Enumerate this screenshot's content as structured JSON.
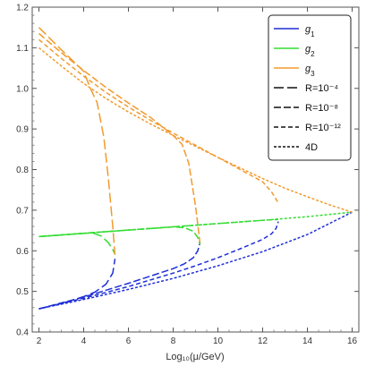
{
  "chart_data": {
    "type": "line",
    "xlabel": "Log₁₀(μ/GeV)",
    "ylabel": "",
    "xlim": [
      1.7,
      16.3
    ],
    "ylim": [
      0.4,
      1.2
    ],
    "xticks": [
      "2",
      "4",
      "6",
      "8",
      "10",
      "12",
      "14",
      "16"
    ],
    "yticks": [
      "0.4",
      "0.5",
      "0.6",
      "0.7",
      "0.8",
      "0.9",
      "1.0",
      "1.1",
      "1.2"
    ],
    "grid": false,
    "legend_position": "top-right",
    "colors": {
      "g1": "#1f2fd6",
      "g2": "#33dd33",
      "g3": "#f29a2e"
    },
    "legend": [
      {
        "label": "g1",
        "base": "g",
        "sub": "1",
        "kind": "color",
        "color": "#1f2fd6"
      },
      {
        "label": "g2",
        "base": "g",
        "sub": "2",
        "kind": "color",
        "color": "#33dd33"
      },
      {
        "label": "g3",
        "base": "g",
        "sub": "3",
        "kind": "color",
        "color": "#f29a2e"
      },
      {
        "label": "R=10⁻⁴",
        "kind": "style",
        "dash": "long"
      },
      {
        "label": "R=10⁻⁸",
        "kind": "style",
        "dash": "medium"
      },
      {
        "label": "R=10⁻¹²",
        "kind": "style",
        "dash": "short"
      },
      {
        "label": "4D",
        "kind": "style",
        "dash": "tiny"
      }
    ],
    "series": [
      {
        "name": "g1 4D",
        "coupling": "g1",
        "dash": "tiny",
        "x": [
          2,
          4,
          6,
          8,
          10,
          12,
          14,
          16
        ],
        "y": [
          0.457,
          0.48,
          0.505,
          0.532,
          0.563,
          0.598,
          0.64,
          0.695
        ]
      },
      {
        "name": "g2 4D",
        "coupling": "g2",
        "dash": "tiny",
        "x": [
          2,
          4,
          6,
          8,
          10,
          12,
          14,
          16
        ],
        "y": [
          0.635,
          0.643,
          0.651,
          0.659,
          0.667,
          0.675,
          0.684,
          0.695
        ]
      },
      {
        "name": "g3 4D",
        "coupling": "g3",
        "dash": "tiny",
        "x": [
          2,
          3,
          4,
          5,
          6,
          7,
          8,
          9,
          10,
          11,
          12,
          13,
          14,
          15,
          16
        ],
        "y": [
          1.1,
          1.055,
          1.012,
          0.975,
          0.942,
          0.912,
          0.884,
          0.857,
          0.83,
          0.804,
          0.778,
          0.754,
          0.733,
          0.713,
          0.695
        ]
      },
      {
        "name": "g1 R=10⁻¹²",
        "coupling": "g1",
        "dash": "short",
        "x": [
          2,
          4,
          6,
          8,
          9,
          10,
          11,
          12,
          12.4,
          12.6,
          12.7
        ],
        "y": [
          0.457,
          0.483,
          0.512,
          0.545,
          0.563,
          0.583,
          0.605,
          0.628,
          0.642,
          0.655,
          0.672
        ]
      },
      {
        "name": "g2 R=10⁻¹²",
        "coupling": "g2",
        "dash": "short",
        "x": [
          2,
          4,
          6,
          8,
          10,
          12,
          12.7
        ],
        "y": [
          0.635,
          0.643,
          0.651,
          0.659,
          0.667,
          0.675,
          0.677
        ]
      },
      {
        "name": "g3 R=10⁻¹²",
        "coupling": "g3",
        "dash": "short",
        "x": [
          2,
          3,
          4,
          5,
          6,
          7,
          8,
          9,
          10,
          11,
          12,
          12.4,
          12.7
        ],
        "y": [
          1.12,
          1.074,
          1.03,
          0.99,
          0.954,
          0.921,
          0.89,
          0.86,
          0.83,
          0.8,
          0.77,
          0.745,
          0.718
        ]
      },
      {
        "name": "g1 R=10⁻⁸",
        "coupling": "g1",
        "dash": "medium",
        "x": [
          2,
          4,
          6,
          7,
          8,
          8.5,
          8.9,
          9.1,
          9.2
        ],
        "y": [
          0.457,
          0.486,
          0.52,
          0.538,
          0.556,
          0.568,
          0.583,
          0.6,
          0.62
        ]
      },
      {
        "name": "g2 R=10⁻⁸",
        "coupling": "g2",
        "dash": "medium",
        "x": [
          2,
          4,
          6,
          8,
          8.5,
          8.9,
          9.1,
          9.2
        ],
        "y": [
          0.635,
          0.643,
          0.651,
          0.659,
          0.657,
          0.648,
          0.633,
          0.616
        ]
      },
      {
        "name": "g3 R=10⁻⁸",
        "coupling": "g3",
        "dash": "medium",
        "x": [
          2,
          3,
          4,
          5,
          6,
          7,
          8,
          8.4,
          8.7,
          9.0,
          9.2
        ],
        "y": [
          1.135,
          1.088,
          1.044,
          1.002,
          0.964,
          0.928,
          0.884,
          0.862,
          0.815,
          0.71,
          0.62
        ]
      },
      {
        "name": "g1 R=10⁻⁴",
        "coupling": "g1",
        "dash": "long",
        "x": [
          2,
          3,
          4,
          4.5,
          5.0,
          5.3,
          5.4
        ],
        "y": [
          0.457,
          0.47,
          0.487,
          0.498,
          0.518,
          0.545,
          0.58
        ]
      },
      {
        "name": "g2 R=10⁻⁴",
        "coupling": "g2",
        "dash": "long",
        "x": [
          2,
          3,
          4,
          4.4,
          4.8,
          5.1,
          5.3,
          5.4
        ],
        "y": [
          0.635,
          0.639,
          0.643,
          0.644,
          0.636,
          0.62,
          0.603,
          0.592
        ]
      },
      {
        "name": "g3 R=10⁻⁴",
        "coupling": "g3",
        "dash": "long",
        "x": [
          2,
          3,
          4,
          4.3,
          4.6,
          4.9,
          5.1,
          5.3,
          5.4
        ],
        "y": [
          1.15,
          1.095,
          1.042,
          1.0,
          0.965,
          0.88,
          0.78,
          0.66,
          0.59
        ]
      }
    ]
  }
}
